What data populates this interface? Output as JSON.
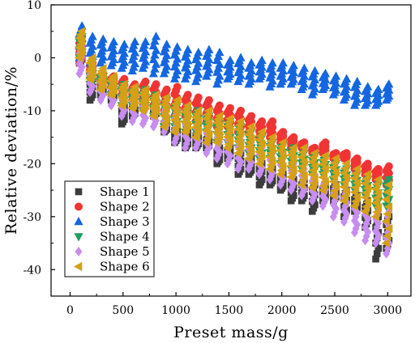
{
  "chart_data": {
    "type": "scatter",
    "title": "",
    "xlabel": "Preset mass/g",
    "ylabel": "Relative deviation/%",
    "xlim": [
      -180,
      3220
    ],
    "ylim": [
      -45,
      10
    ],
    "xticks": [
      0,
      500,
      1000,
      1500,
      2000,
      2500,
      3000
    ],
    "yticks": [
      10,
      0,
      -10,
      -20,
      -30,
      -40
    ],
    "grid": false,
    "legend_position": "bottom-left",
    "x_masses": [
      100,
      200,
      300,
      400,
      500,
      600,
      700,
      800,
      900,
      1000,
      1100,
      1200,
      1300,
      1400,
      1500,
      1600,
      1700,
      1800,
      1900,
      2000,
      2100,
      2200,
      2300,
      2400,
      2500,
      2600,
      2700,
      2800,
      2900,
      3000
    ],
    "series": [
      {
        "name": "Shape 1",
        "marker": "square",
        "color": "#3c3c3c",
        "min": [
          -1,
          -8,
          -7,
          -8,
          -12.5,
          -11,
          -9,
          -11,
          -14,
          -16,
          -17,
          -17,
          -17,
          -20,
          -19,
          -22,
          -22,
          -24,
          -24,
          -25,
          -27,
          -27,
          -29,
          -27,
          -27,
          -30,
          -29,
          -32,
          -38,
          -36
        ],
        "max": [
          2,
          -4,
          -5,
          -6,
          -9,
          -9,
          -7,
          -9,
          -12,
          -13,
          -14,
          -14,
          -15,
          -17,
          -17,
          -18,
          -19,
          -20,
          -21,
          -22,
          -23,
          -23,
          -24,
          -24,
          -24,
          -25,
          -26,
          -27,
          -30,
          -30
        ]
      },
      {
        "name": "Shape 2",
        "marker": "circle",
        "color": "#f03434",
        "min": [
          -1,
          -3,
          -5,
          -5.5,
          -7,
          -8,
          -8,
          -9,
          -10,
          -11,
          -11,
          -12,
          -12,
          -13,
          -13,
          -14,
          -14,
          -15,
          -15,
          -16,
          -17,
          -17,
          -18,
          -18,
          -19,
          -19,
          -21,
          -22,
          -23,
          -24
        ],
        "max": [
          4,
          -1,
          -3,
          -3.5,
          -4,
          -5,
          -4.5,
          -5,
          -6,
          -5.5,
          -7,
          -7.5,
          -8,
          -9,
          -9.5,
          -10,
          -11,
          -12,
          -12,
          -14,
          -15,
          -16,
          -17,
          -16,
          -18,
          -18,
          -19,
          -20,
          -21,
          -20.5
        ]
      },
      {
        "name": "Shape 3",
        "marker": "triangle-up",
        "color": "#1466e0",
        "min": [
          0,
          -1,
          -1,
          -1.5,
          -2,
          -2.5,
          -2,
          -3,
          -3,
          -4,
          -4,
          -4.5,
          -3.5,
          -5,
          -4,
          -4.5,
          -5,
          -4,
          -5.5,
          -5,
          -5,
          -6,
          -7,
          -6,
          -7,
          -8,
          -9,
          -9,
          -9,
          -8
        ],
        "max": [
          6,
          4,
          3.5,
          3,
          2.5,
          3,
          3,
          4,
          2.5,
          2,
          1.5,
          1,
          1.5,
          1,
          -0.5,
          0,
          -1,
          -0.5,
          -1,
          -1,
          -1.5,
          -2,
          -2.5,
          -3,
          -3.5,
          -4,
          -4.5,
          -5.5,
          -6,
          -5
        ]
      },
      {
        "name": "Shape 4",
        "marker": "triangle-down",
        "color": "#1f9e5e",
        "min": [
          0,
          -5,
          -5,
          -7,
          -9,
          -9,
          -10,
          -11,
          -13,
          -13,
          -14,
          -14,
          -14,
          -16,
          -16,
          -17,
          -18,
          -19,
          -19,
          -20,
          -21,
          -21,
          -22,
          -22,
          -23,
          -24,
          -25,
          -26,
          -28,
          -28
        ],
        "max": [
          4,
          -3,
          -3.5,
          -4.5,
          -5,
          -6,
          -6,
          -7,
          -8,
          -9,
          -10,
          -10,
          -11,
          -12,
          -12,
          -13,
          -14,
          -15,
          -16,
          -16.5,
          -17,
          -18,
          -18.5,
          -19,
          -20,
          -21,
          -22,
          -23,
          -24,
          -23
        ]
      },
      {
        "name": "Shape 5",
        "marker": "diamond",
        "color": "#c78df0",
        "min": [
          -3,
          -6.5,
          -8,
          -9,
          -11,
          -12,
          -12.5,
          -13,
          -14,
          -16,
          -17,
          -17,
          -18,
          -19,
          -20,
          -21,
          -21,
          -22,
          -23,
          -24,
          -25,
          -26,
          -27,
          -28,
          -30,
          -31,
          -33,
          -34.5,
          -35,
          -37
        ],
        "max": [
          2,
          -2,
          -3.5,
          -5,
          -6.5,
          -7,
          -8,
          -8.5,
          -9,
          -10,
          -11,
          -12,
          -13,
          -14,
          -14,
          -15.5,
          -16,
          -17,
          -18,
          -19,
          -20,
          -21,
          -22,
          -23,
          -24,
          -25,
          -27,
          -28,
          -29,
          -29
        ]
      },
      {
        "name": "Shape 6",
        "marker": "triangle-left",
        "color": "#d4a017",
        "min": [
          0,
          -4,
          -6,
          -7,
          -9,
          -9.5,
          -10,
          -11,
          -13,
          -14,
          -14,
          -15,
          -16,
          -16,
          -17,
          -18,
          -19,
          -20,
          -21,
          -22,
          -22.5,
          -24,
          -24.5,
          -25,
          -26,
          -27,
          -28,
          -29,
          -30,
          -35
        ],
        "max": [
          5,
          0,
          -2,
          -3.5,
          -5,
          -5.5,
          -6,
          -7,
          -7.5,
          -8,
          -9,
          -10,
          -10,
          -11,
          -11.5,
          -12,
          -13,
          -14,
          -15,
          -16,
          -17,
          -17,
          -18,
          -18.5,
          -19,
          -20,
          -21,
          -22,
          -23,
          -24
        ]
      }
    ]
  }
}
